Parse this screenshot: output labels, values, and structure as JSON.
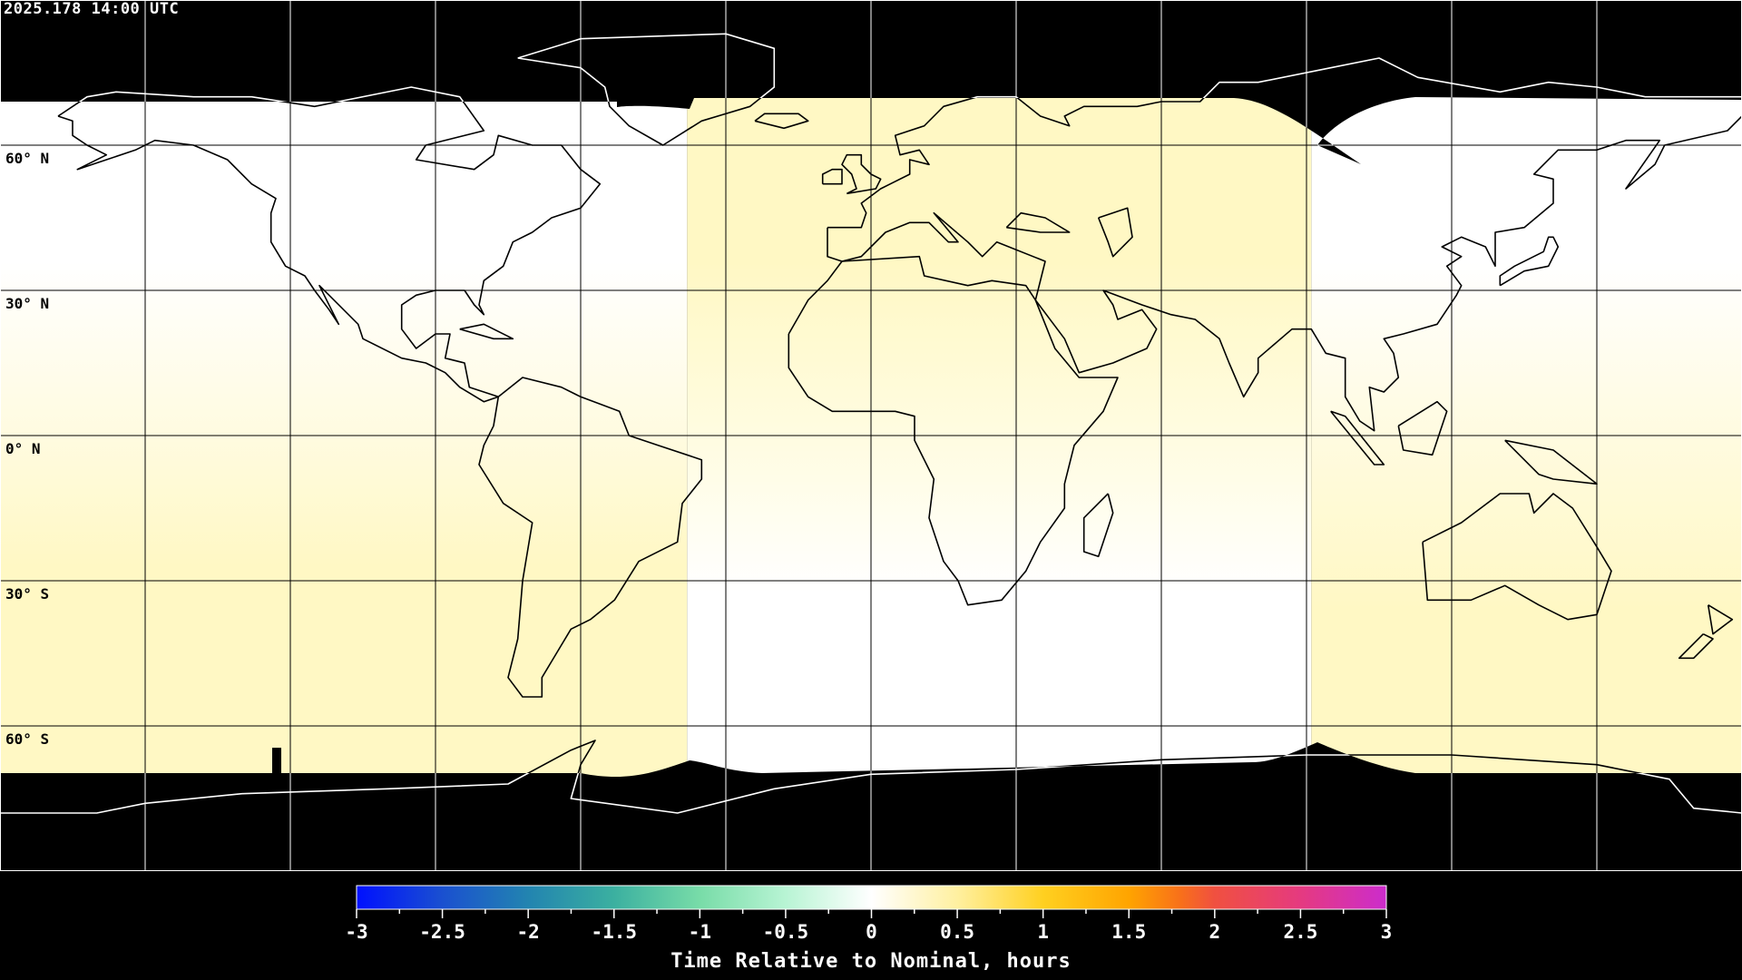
{
  "header": {
    "timestamp": "2025.178 14:00 UTC"
  },
  "map": {
    "projection": "equirectangular",
    "lon_range": [
      -180,
      180
    ],
    "lat_range": [
      -90,
      90
    ],
    "gridline_lons": [
      -150,
      -120,
      -90,
      -60,
      -30,
      0,
      30,
      60,
      90,
      120,
      150
    ],
    "gridline_lats": [
      60,
      30,
      0,
      -30,
      -60
    ],
    "lat_labels": [
      {
        "lat": 60,
        "text": "60° N"
      },
      {
        "lat": 30,
        "text": "30° N"
      },
      {
        "lat": 0,
        "text": "0° N"
      },
      {
        "lat": -30,
        "text": "30° S"
      },
      {
        "lat": -60,
        "text": "60° S"
      }
    ],
    "colors": {
      "no_data": "#000000",
      "field_low": "#ffffff",
      "field_high": "#fff8c4",
      "coastline": "#000000",
      "coastline_on_nodata": "#ffffff"
    }
  },
  "colorbar": {
    "title": "Time Relative to Nominal, hours",
    "min": -3,
    "max": 3,
    "tick_labels": [
      "-3",
      "-2.5",
      "-2",
      "-1.5",
      "-1",
      "-0.5",
      "0",
      "0.5",
      "1",
      "1.5",
      "2",
      "2.5",
      "3"
    ],
    "stops": [
      {
        "v": -3,
        "c": "#0010ff"
      },
      {
        "v": -2.5,
        "c": "#1a50d0"
      },
      {
        "v": -2,
        "c": "#2284b0"
      },
      {
        "v": -1.5,
        "c": "#3bb0a0"
      },
      {
        "v": -1,
        "c": "#78dca8"
      },
      {
        "v": -0.5,
        "c": "#b8f4d4"
      },
      {
        "v": 0,
        "c": "#ffffff"
      },
      {
        "v": 0.5,
        "c": "#fff0a0"
      },
      {
        "v": 1,
        "c": "#ffd020"
      },
      {
        "v": 1.5,
        "c": "#ffa400"
      },
      {
        "v": 1.8,
        "c": "#f8701a"
      },
      {
        "v": 2,
        "c": "#f05040"
      },
      {
        "v": 2.5,
        "c": "#e53a80"
      },
      {
        "v": 3,
        "c": "#cc2ccc"
      }
    ]
  }
}
